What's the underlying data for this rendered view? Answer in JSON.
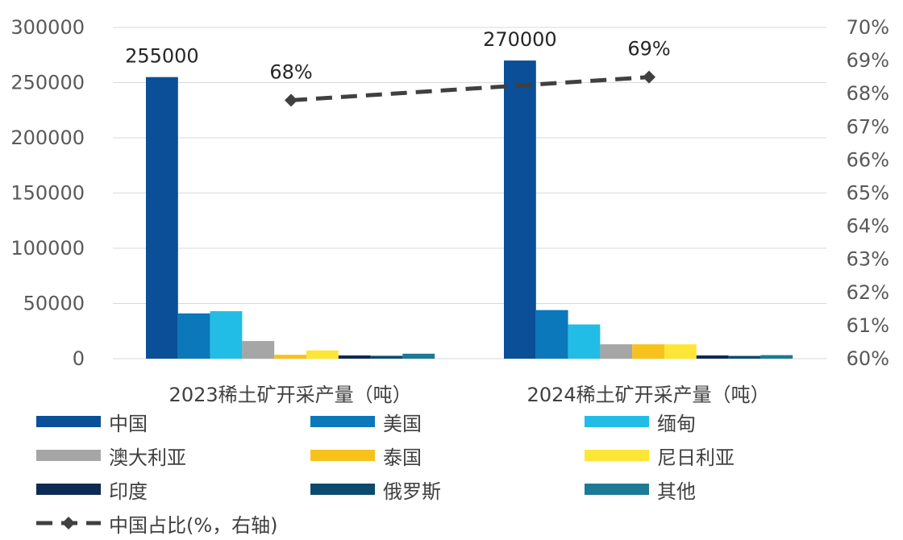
{
  "chart_data": {
    "type": "bar",
    "categories": [
      "2023稀土矿开采产量（吨）",
      "2024稀土矿开采产量（吨）"
    ],
    "series": [
      {
        "name": "中国",
        "color": "#0a4f97",
        "values": [
          255000,
          270000
        ]
      },
      {
        "name": "美国",
        "color": "#0b78bb",
        "values": [
          41000,
          44000
        ]
      },
      {
        "name": "缅甸",
        "color": "#22bde6",
        "values": [
          43000,
          31000
        ]
      },
      {
        "name": "澳大利亚",
        "color": "#a6a6a6",
        "values": [
          16000,
          13000
        ]
      },
      {
        "name": "泰国",
        "color": "#f8c21c",
        "values": [
          3500,
          13000
        ]
      },
      {
        "name": "尼日利亚",
        "color": "#fde635",
        "values": [
          7500,
          13000
        ]
      },
      {
        "name": "印度",
        "color": "#0d2b52",
        "values": [
          2900,
          2900
        ]
      },
      {
        "name": "俄罗斯",
        "color": "#0c4a6e",
        "values": [
          2600,
          2500
        ]
      },
      {
        "name": "其他",
        "color": "#1c7a95",
        "values": [
          4500,
          3200
        ]
      }
    ],
    "line_series": {
      "name": "中国占比(%，右轴)",
      "color": "#404040",
      "values": [
        0.678,
        0.685
      ],
      "labels": [
        "68%",
        "69%"
      ]
    },
    "data_labels": [
      "255000",
      "270000"
    ],
    "y_left": {
      "min": 0,
      "max": 300000,
      "ticks": [
        "0",
        "50000",
        "100000",
        "150000",
        "200000",
        "250000",
        "300000"
      ]
    },
    "y_right": {
      "min": 0.6,
      "max": 0.7,
      "ticks": [
        "60%",
        "61%",
        "62%",
        "63%",
        "64%",
        "65%",
        "66%",
        "67%",
        "68%",
        "69%",
        "70%"
      ]
    },
    "grid": true,
    "legend_position": "bottom"
  }
}
